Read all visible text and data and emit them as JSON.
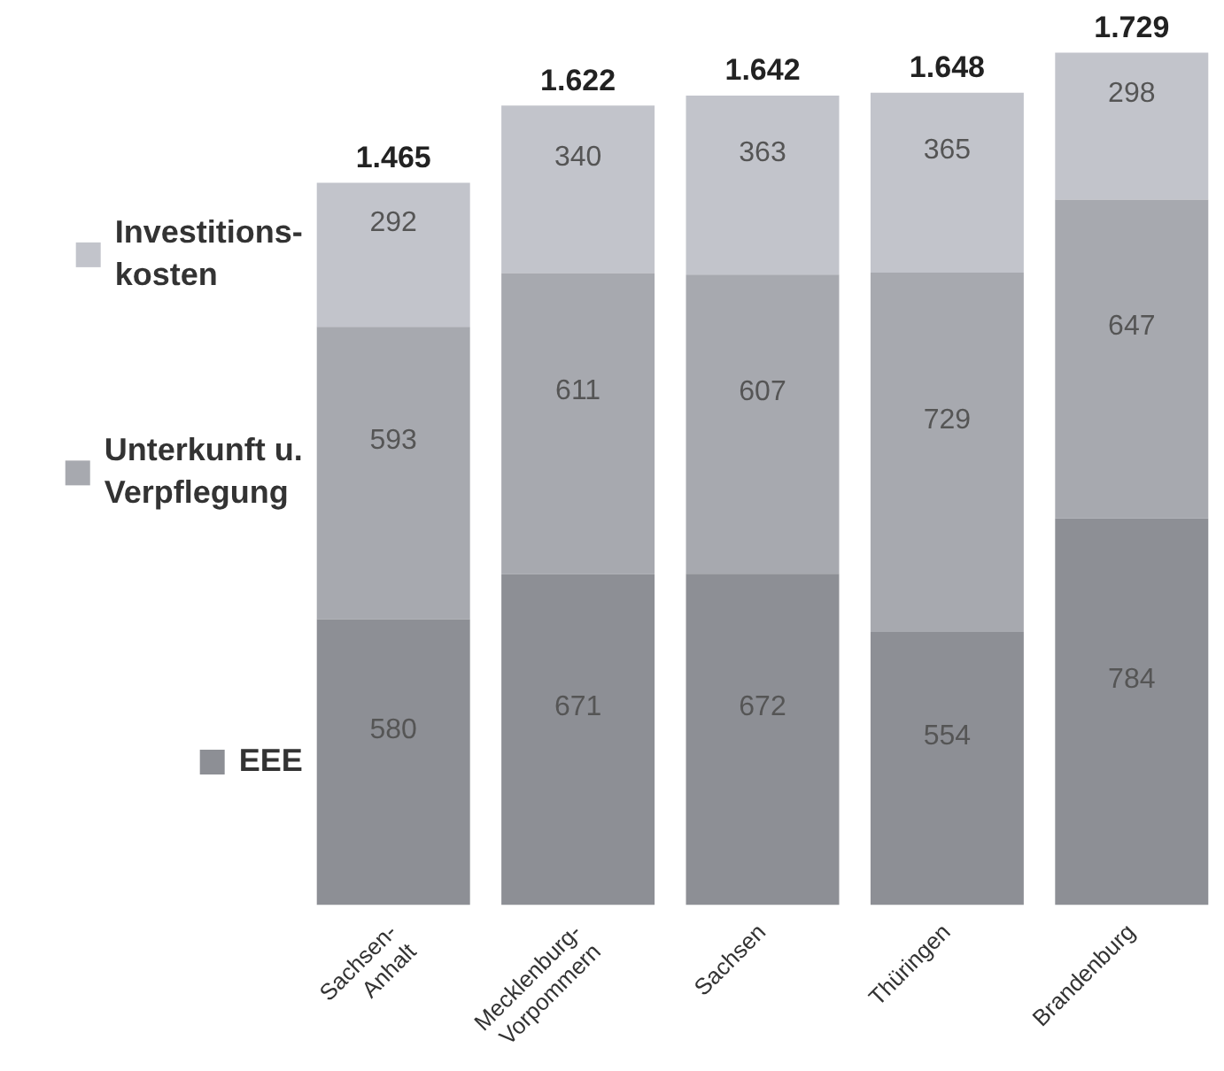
{
  "chart_data": {
    "type": "bar",
    "stacked": true,
    "data_labels": true,
    "legend": "left",
    "grid": false,
    "categories": [
      "Sachsen-Anhalt",
      "Mecklenburg-Vorpommern",
      "Sachsen",
      "Thüringen",
      "Brandenburg"
    ],
    "series": [
      {
        "name": "EEE",
        "color": "#8d8f95",
        "values": [
          580,
          671,
          672,
          554,
          784
        ]
      },
      {
        "name": "Unterkunft u. Verpflegung",
        "color": "#a7a9af",
        "values": [
          593,
          611,
          607,
          729,
          647
        ]
      },
      {
        "name": "Investitions-kosten",
        "color": "#c2c4cb",
        "values": [
          292,
          340,
          363,
          365,
          298
        ]
      }
    ],
    "totals": [
      "1.465",
      "1.622",
      "1.642",
      "1.648",
      "1.729"
    ]
  }
}
